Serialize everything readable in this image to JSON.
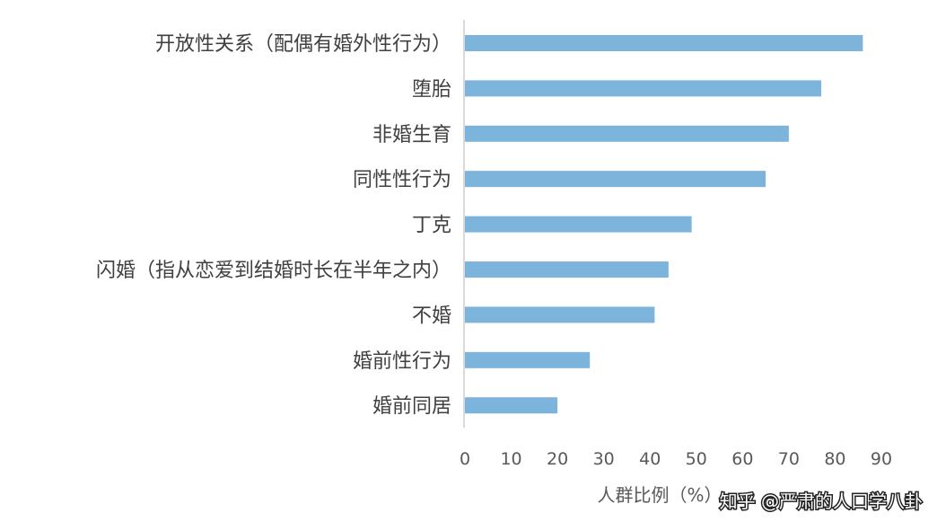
{
  "chart_data": {
    "type": "bar",
    "orientation": "horizontal",
    "categories": [
      "开放性关系（配偶有婚外性行为）",
      "堕胎",
      "非婚生育",
      "同性性行为",
      "丁克",
      "闪婚（指从恋爱到结婚时长在半年之内）",
      "不婚",
      "婚前性行为",
      "婚前同居"
    ],
    "values": [
      86,
      77,
      70,
      65,
      49,
      44,
      41,
      27,
      20
    ],
    "xlabel": "人群比例（%）",
    "ylabel": "",
    "title": "",
    "xlim": [
      0,
      90
    ],
    "xticks": [
      0,
      10,
      20,
      30,
      40,
      50,
      60,
      70,
      80,
      90
    ],
    "grid": false,
    "legend": "none",
    "bar_color": "#7db4dc",
    "axis_color": "#d9d9d9"
  },
  "watermark": {
    "text": "知乎 @严肃的人口学八卦"
  }
}
